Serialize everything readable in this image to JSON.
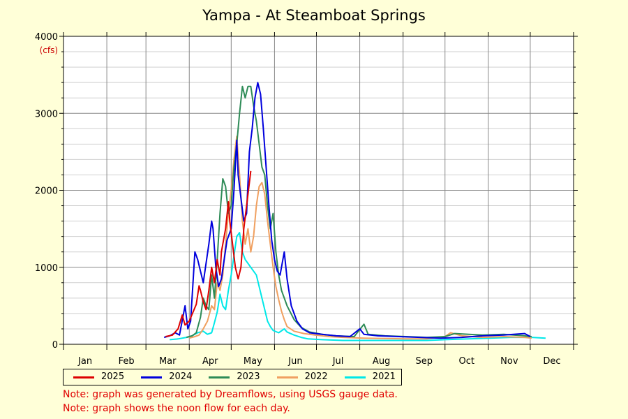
{
  "chart_data": {
    "type": "line",
    "title": "Yampa - At Steamboat Springs",
    "ylabel": "(cfs)",
    "xlabel": "",
    "ylim": [
      0,
      4000
    ],
    "xlim": [
      0,
      365
    ],
    "y_ticks": [
      0,
      1000,
      2000,
      3000,
      4000
    ],
    "month_labels": [
      "Jan",
      "Feb",
      "Mar",
      "Apr",
      "May",
      "Jun",
      "Jul",
      "Aug",
      "Sep",
      "Oct",
      "Nov",
      "Dec"
    ],
    "month_starts": [
      0,
      31,
      59,
      90,
      120,
      151,
      181,
      212,
      243,
      273,
      304,
      334,
      365
    ],
    "grid": true,
    "legend_position": "bottom",
    "series": [
      {
        "name": "2025",
        "color": "#dd0000",
        "points": [
          [
            73,
            100
          ],
          [
            78,
            120
          ],
          [
            82,
            200
          ],
          [
            85,
            380
          ],
          [
            87,
            250
          ],
          [
            90,
            300
          ],
          [
            95,
            520
          ],
          [
            97,
            760
          ],
          [
            98,
            700
          ],
          [
            100,
            550
          ],
          [
            102,
            450
          ],
          [
            104,
            700
          ],
          [
            106,
            1000
          ],
          [
            108,
            800
          ],
          [
            110,
            1100
          ],
          [
            112,
            900
          ],
          [
            113,
            1200
          ],
          [
            116,
            1500
          ],
          [
            118,
            1850
          ],
          [
            119,
            1600
          ],
          [
            121,
            1300
          ],
          [
            123,
            1000
          ],
          [
            125,
            850
          ],
          [
            127,
            1000
          ],
          [
            129,
            1500
          ],
          [
            131,
            1800
          ],
          [
            133,
            2100
          ],
          [
            134,
            2250
          ]
        ]
      },
      {
        "name": "2024",
        "color": "#0000dd",
        "points": [
          [
            72,
            90
          ],
          [
            76,
            110
          ],
          [
            80,
            150
          ],
          [
            83,
            120
          ],
          [
            87,
            500
          ],
          [
            89,
            200
          ],
          [
            91,
            300
          ],
          [
            94,
            1200
          ],
          [
            96,
            1100
          ],
          [
            98,
            950
          ],
          [
            100,
            800
          ],
          [
            102,
            1050
          ],
          [
            104,
            1300
          ],
          [
            106,
            1600
          ],
          [
            107,
            1500
          ],
          [
            109,
            1000
          ],
          [
            111,
            750
          ],
          [
            113,
            850
          ],
          [
            115,
            1100
          ],
          [
            117,
            1350
          ],
          [
            120,
            1500
          ],
          [
            122,
            2000
          ],
          [
            124,
            2650
          ],
          [
            125,
            2200
          ],
          [
            127,
            1900
          ],
          [
            129,
            1600
          ],
          [
            131,
            1700
          ],
          [
            133,
            2500
          ],
          [
            135,
            2800
          ],
          [
            137,
            3200
          ],
          [
            139,
            3400
          ],
          [
            141,
            3250
          ],
          [
            143,
            2800
          ],
          [
            145,
            2300
          ],
          [
            147,
            1800
          ],
          [
            149,
            1350
          ],
          [
            151,
            1100
          ],
          [
            153,
            950
          ],
          [
            155,
            900
          ],
          [
            157,
            1100
          ],
          [
            158,
            1200
          ],
          [
            160,
            850
          ],
          [
            163,
            500
          ],
          [
            167,
            300
          ],
          [
            171,
            200
          ],
          [
            176,
            150
          ],
          [
            185,
            130
          ],
          [
            195,
            110
          ],
          [
            205,
            100
          ],
          [
            212,
            200
          ],
          [
            215,
            130
          ],
          [
            225,
            110
          ],
          [
            240,
            100
          ],
          [
            255,
            90
          ],
          [
            270,
            80
          ],
          [
            285,
            90
          ],
          [
            300,
            110
          ],
          [
            315,
            120
          ],
          [
            330,
            140
          ],
          [
            334,
            100
          ]
        ]
      },
      {
        "name": "2023",
        "color": "#2e8b57",
        "points": [
          [
            88,
            90
          ],
          [
            92,
            110
          ],
          [
            95,
            150
          ],
          [
            98,
            350
          ],
          [
            100,
            600
          ],
          [
            102,
            500
          ],
          [
            104,
            450
          ],
          [
            106,
            900
          ],
          [
            108,
            600
          ],
          [
            110,
            1100
          ],
          [
            112,
            1700
          ],
          [
            114,
            2150
          ],
          [
            116,
            2050
          ],
          [
            118,
            1700
          ],
          [
            120,
            1800
          ],
          [
            122,
            2300
          ],
          [
            124,
            2600
          ],
          [
            126,
            3000
          ],
          [
            128,
            3350
          ],
          [
            130,
            3200
          ],
          [
            132,
            3350
          ],
          [
            134,
            3350
          ],
          [
            136,
            3100
          ],
          [
            138,
            2900
          ],
          [
            140,
            2600
          ],
          [
            142,
            2300
          ],
          [
            144,
            2200
          ],
          [
            146,
            1800
          ],
          [
            148,
            1500
          ],
          [
            150,
            1700
          ],
          [
            152,
            1200
          ],
          [
            154,
            900
          ],
          [
            156,
            700
          ],
          [
            160,
            500
          ],
          [
            165,
            320
          ],
          [
            170,
            220
          ],
          [
            176,
            160
          ],
          [
            185,
            130
          ],
          [
            195,
            110
          ],
          [
            208,
            100
          ],
          [
            215,
            260
          ],
          [
            218,
            130
          ],
          [
            230,
            110
          ],
          [
            245,
            100
          ],
          [
            260,
            90
          ],
          [
            273,
            100
          ],
          [
            280,
            140
          ],
          [
            290,
            130
          ],
          [
            300,
            120
          ],
          [
            315,
            130
          ],
          [
            330,
            110
          ],
          [
            335,
            100
          ]
        ]
      },
      {
        "name": "2022",
        "color": "#f0a060",
        "points": [
          [
            90,
            80
          ],
          [
            94,
            100
          ],
          [
            97,
            120
          ],
          [
            100,
            200
          ],
          [
            103,
            300
          ],
          [
            106,
            500
          ],
          [
            108,
            450
          ],
          [
            110,
            800
          ],
          [
            112,
            700
          ],
          [
            114,
            900
          ],
          [
            116,
            1300
          ],
          [
            118,
            1700
          ],
          [
            120,
            2000
          ],
          [
            122,
            2400
          ],
          [
            124,
            2700
          ],
          [
            126,
            2200
          ],
          [
            128,
            1600
          ],
          [
            130,
            1300
          ],
          [
            132,
            1500
          ],
          [
            134,
            1200
          ],
          [
            136,
            1400
          ],
          [
            138,
            1800
          ],
          [
            140,
            2050
          ],
          [
            142,
            2100
          ],
          [
            144,
            1950
          ],
          [
            146,
            1600
          ],
          [
            148,
            1300
          ],
          [
            150,
            1000
          ],
          [
            152,
            750
          ],
          [
            154,
            580
          ],
          [
            156,
            430
          ],
          [
            158,
            320
          ],
          [
            160,
            230
          ],
          [
            165,
            170
          ],
          [
            172,
            140
          ],
          [
            180,
            120
          ],
          [
            190,
            100
          ],
          [
            200,
            90
          ],
          [
            215,
            80
          ],
          [
            230,
            75
          ],
          [
            245,
            70
          ],
          [
            260,
            70
          ],
          [
            273,
            100
          ],
          [
            277,
            150
          ],
          [
            285,
            110
          ],
          [
            300,
            90
          ],
          [
            315,
            100
          ],
          [
            330,
            90
          ],
          [
            335,
            80
          ]
        ]
      },
      {
        "name": "2021",
        "color": "#00e8e8",
        "points": [
          [
            76,
            60
          ],
          [
            82,
            70
          ],
          [
            88,
            90
          ],
          [
            92,
            110
          ],
          [
            96,
            150
          ],
          [
            100,
            170
          ],
          [
            103,
            130
          ],
          [
            106,
            150
          ],
          [
            108,
            280
          ],
          [
            110,
            420
          ],
          [
            112,
            650
          ],
          [
            114,
            500
          ],
          [
            116,
            450
          ],
          [
            118,
            700
          ],
          [
            120,
            900
          ],
          [
            122,
            1150
          ],
          [
            124,
            1400
          ],
          [
            126,
            1450
          ],
          [
            128,
            1200
          ],
          [
            130,
            1100
          ],
          [
            132,
            1050
          ],
          [
            134,
            1000
          ],
          [
            136,
            950
          ],
          [
            138,
            900
          ],
          [
            140,
            750
          ],
          [
            142,
            600
          ],
          [
            144,
            450
          ],
          [
            146,
            300
          ],
          [
            148,
            230
          ],
          [
            150,
            180
          ],
          [
            154,
            150
          ],
          [
            158,
            200
          ],
          [
            160,
            160
          ],
          [
            165,
            120
          ],
          [
            170,
            90
          ],
          [
            175,
            70
          ],
          [
            185,
            60
          ],
          [
            200,
            50
          ],
          [
            215,
            50
          ],
          [
            230,
            50
          ],
          [
            245,
            50
          ],
          [
            260,
            50
          ],
          [
            273,
            60
          ],
          [
            290,
            70
          ],
          [
            305,
            80
          ],
          [
            320,
            90
          ],
          [
            335,
            90
          ],
          [
            345,
            80
          ]
        ]
      }
    ]
  },
  "notes": [
    "Note: graph was generated by Dreamflows, using USGS gauge data.",
    "Note: graph shows the noon flow for each day."
  ]
}
